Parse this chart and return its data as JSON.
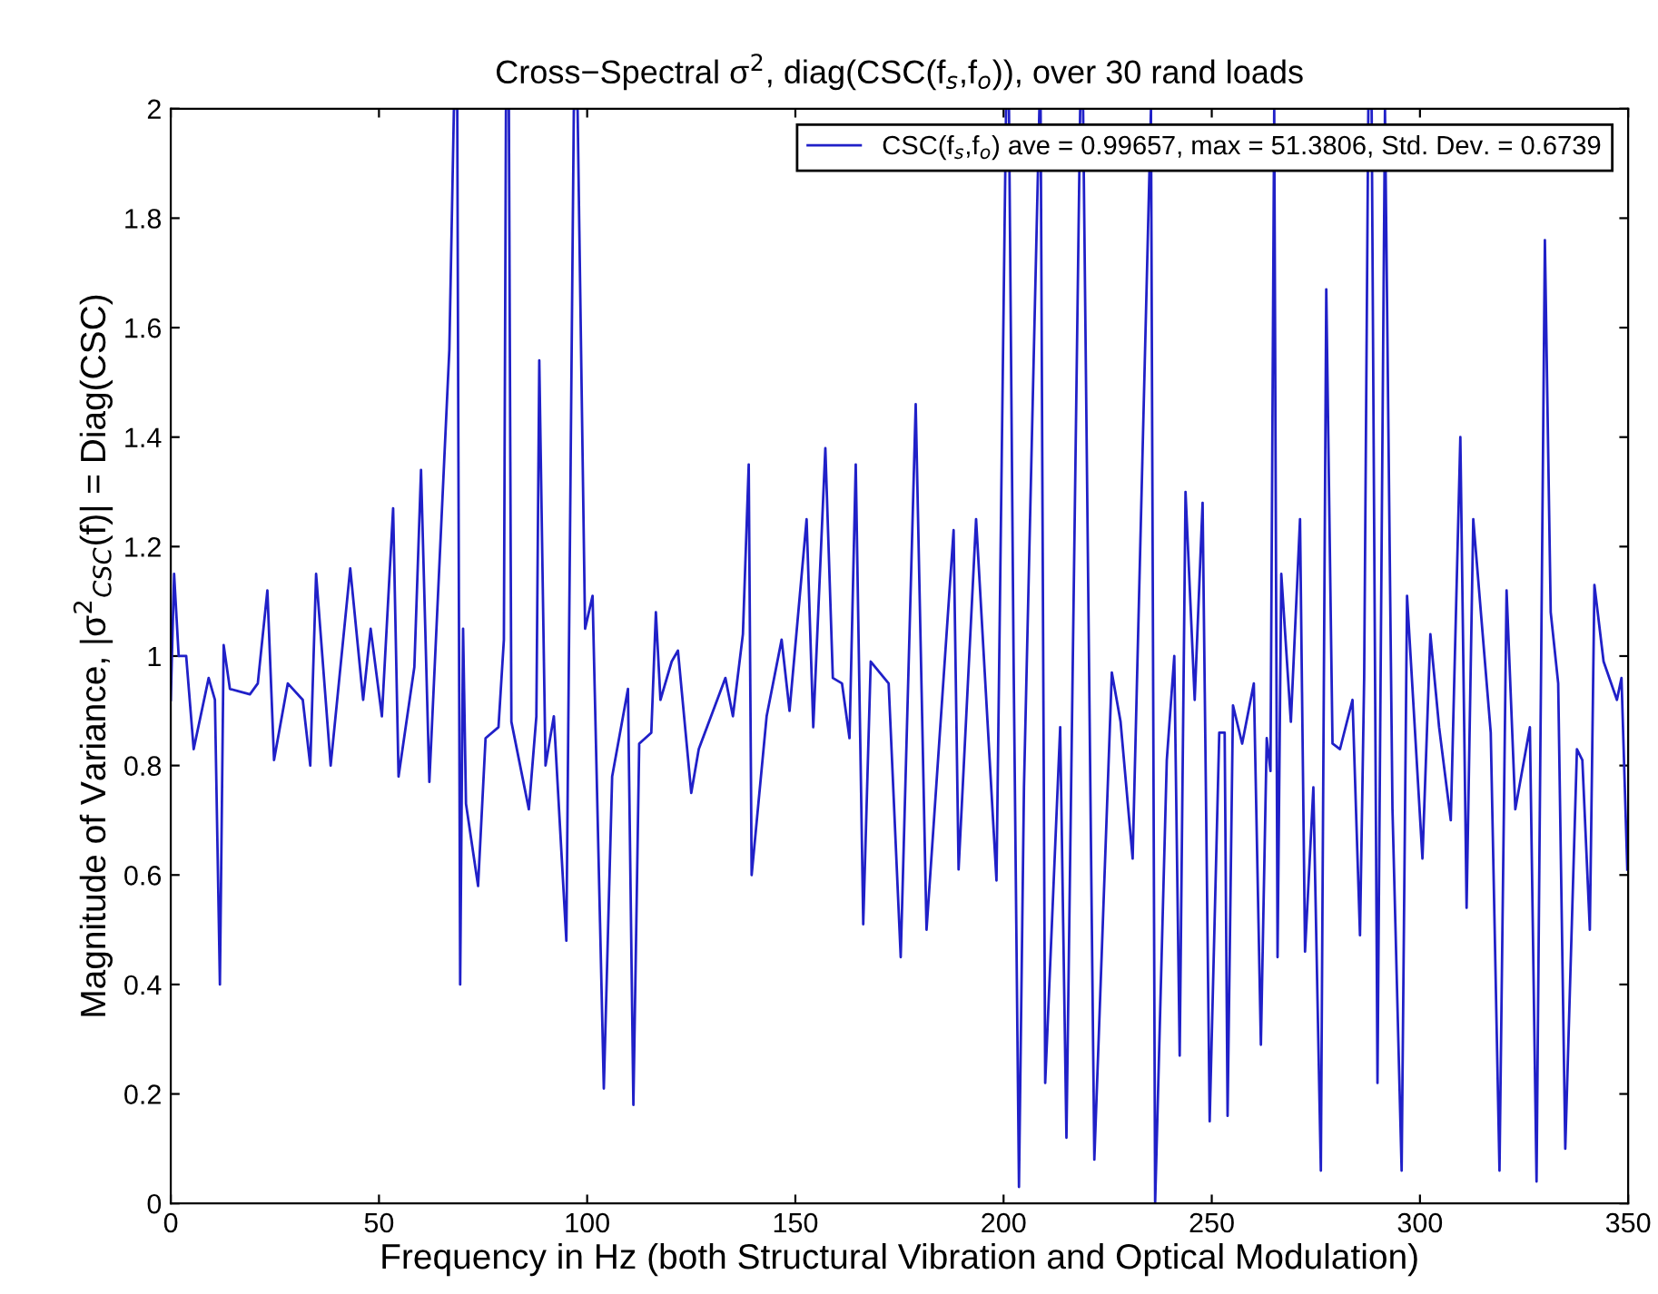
{
  "chart_data": {
    "type": "line",
    "title": "Cross−Spectral σ$^{2}$, diag(CSC(f$_{s}$,f$_{o}$)), over 30 rand loads",
    "xlabel": "Frequency in Hz (both Structural Vibration and Optical Modulation)",
    "ylabel": "Magnitude of Variance, |σ$^{2}$$_{CSC}$(f)| = Diag(CSC)",
    "xlim": [
      0,
      350
    ],
    "xticks": [
      0,
      50,
      100,
      150,
      200,
      250,
      300,
      350
    ],
    "ylim": [
      0,
      2
    ],
    "yticks": [
      0,
      0.2,
      0.4,
      0.6,
      0.8,
      1,
      1.2,
      1.4,
      1.6,
      1.8,
      2
    ],
    "grid": false,
    "legend": "top right",
    "marker": "none",
    "line_style": "solid",
    "series": [
      {
        "name": "CSC(f$_{s}$,f$_{o}$) ave = 0.99657, max = 51.3806, Std. Dev. = 0.6739",
        "color": "#2020c8",
        "x": [
          0,
          0.8,
          1.9,
          3.7,
          5.5,
          9.1,
          10.6,
          11.8,
          12.7,
          14.2,
          19.0,
          20.9,
          23.2,
          24.8,
          28.1,
          31.7,
          33.5,
          34.9,
          38.4,
          43.1,
          46.2,
          48.0,
          50.7,
          53.4,
          54.7,
          58.5,
          60.1,
          62.1,
          66.9,
          68.0,
          68.8,
          69.5,
          70.2,
          70.9,
          73.8,
          75.6,
          78.7,
          80.0,
          80.5,
          81.2,
          81.8,
          86.0,
          87.8,
          88.5,
          90.0,
          92.0,
          95.0,
          96.8,
          97.7,
          99.5,
          101.3,
          104.0,
          106.0,
          109.8,
          111.1,
          112.5,
          115.4,
          116.5,
          117.6,
          120.3,
          121.8,
          125.0,
          126.8,
          133.2,
          135.0,
          137.4,
          138.8,
          139.5,
          143.1,
          146.7,
          148.6,
          152.7,
          154.3,
          157.2,
          159.0,
          161.2,
          163.0,
          164.5,
          166.3,
          168.1,
          172.4,
          175.3,
          178.9,
          181.5,
          188.0,
          189.2,
          193.4,
          198.3,
          200.6,
          201.3,
          202.4,
          203.7,
          204.9,
          208.6,
          208.9,
          210.0,
          213.6,
          215.1,
          218.4,
          219.1,
          221.8,
          226.0,
          228.1,
          231.0,
          235.4,
          236.4,
          239.2,
          241.0,
          242.3,
          243.7,
          245.9,
          247.8,
          249.5,
          251.8,
          253.1,
          253.8,
          255.1,
          257.3,
          260.1,
          261.8,
          263.2,
          264.1,
          265.0,
          265.8,
          266.7,
          269.0,
          271.2,
          272.4,
          274.4,
          276.2,
          277.5,
          279.0,
          280.8,
          283.8,
          285.6,
          286.6,
          287.6,
          288.4,
          289.8,
          291.6,
          293.4,
          295.6,
          296.9,
          300.6,
          302.5,
          304.6,
          307.4,
          309.7,
          311.2,
          312.8,
          317.0,
          319.1,
          320.8,
          322.9,
          326.4,
          328.0,
          330.0,
          331.4,
          333.2,
          334.9,
          337.7,
          339.0,
          340.8,
          341.9,
          344.1,
          347.3,
          348.4,
          349.8
        ],
        "values": [
          0.92,
          1.15,
          1.0,
          1.0,
          0.83,
          0.96,
          0.92,
          0.4,
          1.02,
          0.94,
          0.93,
          0.95,
          1.12,
          0.81,
          0.95,
          0.92,
          0.8,
          1.15,
          0.8,
          1.16,
          0.92,
          1.05,
          0.89,
          1.27,
          0.78,
          0.98,
          1.34,
          0.77,
          1.56,
          2.0,
          2.0,
          0.4,
          1.05,
          0.73,
          0.58,
          0.85,
          0.87,
          1.03,
          2.0,
          2.0,
          0.88,
          0.72,
          0.89,
          1.54,
          0.8,
          0.89,
          0.48,
          2.0,
          2.0,
          1.05,
          1.11,
          0.21,
          0.78,
          0.94,
          0.18,
          0.84,
          0.86,
          1.08,
          0.92,
          0.99,
          1.01,
          0.75,
          0.83,
          0.96,
          0.89,
          1.04,
          1.35,
          0.6,
          0.89,
          1.03,
          0.9,
          1.25,
          0.87,
          1.38,
          0.96,
          0.95,
          0.85,
          1.35,
          0.51,
          0.99,
          0.95,
          0.45,
          1.46,
          0.5,
          1.23,
          0.61,
          1.25,
          0.59,
          2.0,
          2.0,
          1.0,
          0.03,
          0.76,
          2.0,
          2.0,
          0.22,
          0.87,
          0.12,
          2.0,
          2.0,
          0.08,
          0.97,
          0.88,
          0.63,
          2.0,
          0.0,
          0.81,
          1.0,
          0.27,
          1.3,
          0.92,
          1.28,
          0.15,
          0.86,
          0.86,
          0.16,
          0.91,
          0.84,
          0.95,
          0.29,
          0.85,
          0.79,
          2.0,
          0.45,
          1.15,
          0.88,
          1.25,
          0.46,
          0.76,
          0.06,
          1.67,
          0.84,
          0.83,
          0.92,
          0.49,
          0.96,
          2.0,
          2.0,
          0.22,
          2.0,
          0.72,
          0.06,
          1.11,
          0.63,
          1.04,
          0.87,
          0.7,
          1.4,
          0.54,
          1.25,
          0.86,
          0.06,
          1.12,
          0.72,
          0.87,
          0.04,
          1.76,
          1.08,
          0.95,
          0.1,
          0.83,
          0.81,
          0.5,
          1.13,
          0.99,
          0.92,
          0.96,
          0.61
        ]
      }
    ]
  }
}
